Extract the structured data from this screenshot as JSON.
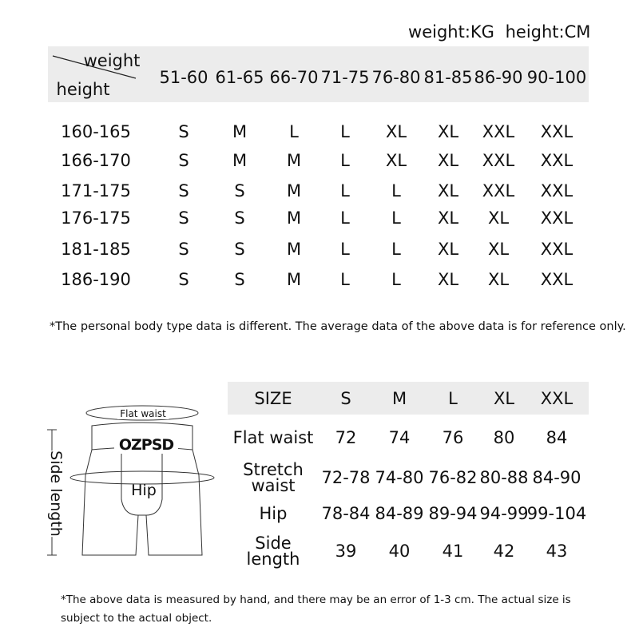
{
  "units": {
    "weight": "weight:KG",
    "height": "height:CM"
  },
  "top_table": {
    "corner": {
      "weight": "weight",
      "height": "height"
    },
    "weight_ranges": [
      "51-60",
      "61-65",
      "66-70",
      "71-75",
      "76-80",
      "81-85",
      "86-90",
      "90-100"
    ],
    "rows": [
      {
        "height": "160-165",
        "sizes": [
          "S",
          "M",
          "L",
          "L",
          "XL",
          "XL",
          "XXL",
          "XXL"
        ]
      },
      {
        "height": "166-170",
        "sizes": [
          "S",
          "M",
          "M",
          "L",
          "XL",
          "XL",
          "XXL",
          "XXL"
        ]
      },
      {
        "height": "171-175",
        "sizes": [
          "S",
          "S",
          "M",
          "L",
          "L",
          "XL",
          "XXL",
          "XXL"
        ]
      },
      {
        "height": "176-175",
        "sizes": [
          "S",
          "S",
          "M",
          "L",
          "L",
          "XL",
          "XL",
          "XXL"
        ]
      },
      {
        "height": "181-185",
        "sizes": [
          "S",
          "S",
          "M",
          "L",
          "L",
          "XL",
          "XL",
          "XXL"
        ]
      },
      {
        "height": "186-190",
        "sizes": [
          "S",
          "S",
          "M",
          "L",
          "L",
          "XL",
          "XL",
          "XXL"
        ]
      }
    ]
  },
  "note1": "*The personal body type data is different. The average data of the above data is for reference only.",
  "diagram": {
    "brand": "OZPSD",
    "flat_waist": "Flat waist",
    "hip": "Hip",
    "side_length": "Side length"
  },
  "bottom_table": {
    "header": [
      "SIZE",
      "S",
      "M",
      "L",
      "XL",
      "XXL"
    ],
    "rows": [
      {
        "label": "Flat waist",
        "values": [
          "72",
          "74",
          "76",
          "80",
          "84"
        ]
      },
      {
        "label": "Stretch waist",
        "values": [
          "72-78",
          "74-80",
          "76-82",
          "80-88",
          "84-90"
        ]
      },
      {
        "label": "Hip",
        "values": [
          "78-84",
          "84-89",
          "89-94",
          "94-99",
          "99-104"
        ]
      },
      {
        "label": "Side length",
        "values": [
          "39",
          "40",
          "41",
          "42",
          "43"
        ]
      }
    ]
  },
  "note2": "*The above data is measured by hand, and there may be an error of 1-3 cm. The actual size is subject to the actual object."
}
